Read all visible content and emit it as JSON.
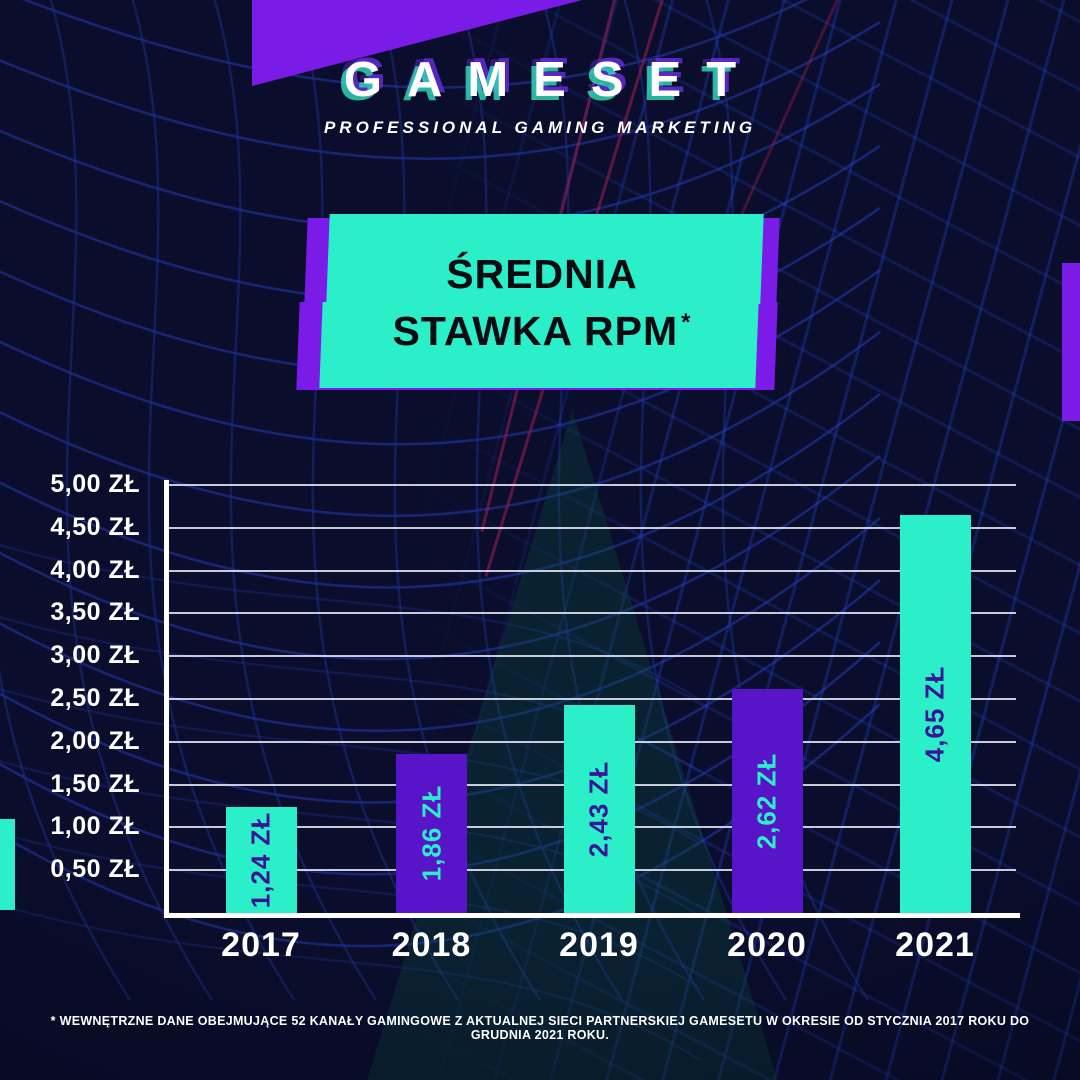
{
  "brand": {
    "logo": "GAMESET",
    "tagline": "PROFESSIONAL GAMING MARKETING"
  },
  "title": {
    "line1": "ŚREDNIA",
    "line2": "STAWKA RPM",
    "asterisk": "*"
  },
  "chart_data": {
    "type": "bar",
    "title": "ŚREDNIA STAWKA RPM*",
    "categories": [
      "2017",
      "2018",
      "2019",
      "2020",
      "2021"
    ],
    "values": [
      1.24,
      1.86,
      2.43,
      2.62,
      4.65
    ],
    "value_labels": [
      "1,24 ZŁ",
      "1,86 ZŁ",
      "2,43 ZŁ",
      "2,62 ZŁ",
      "4,65 ZŁ"
    ],
    "y_ticks": [
      "5,00 ZŁ",
      "4,50 ZŁ",
      "4,00 ZŁ",
      "3,50 ZŁ",
      "3,00 ZŁ",
      "2,50 ZŁ",
      "2,00 ZŁ",
      "1,50 ZŁ",
      "1,00 ZŁ",
      "0,50 ZŁ"
    ],
    "ylim": [
      0,
      5.0
    ],
    "unit": "ZŁ",
    "grid": true,
    "bar_colors": [
      "#2BEFC8",
      "#5714C9",
      "#2BEFC8",
      "#5714C9",
      "#2BEFC8"
    ],
    "value_label_colors": [
      "#3B1497",
      "#2BEFC8",
      "#3B1497",
      "#2BEFC8",
      "#3B1497"
    ]
  },
  "footnote": "* WEWNĘTRZNE DANE OBEJMUJĄCE 52 KANAŁY GAMINGOWE Z AKTUALNEJ SIECI PARTNERSKIEJ GAMESETU W OKRESIE OD STYCZNIA 2017 ROKU DO GRUDNIA 2021 ROKU.",
  "colors": {
    "background": "#0A0E2C",
    "teal": "#2BEFC8",
    "purple": "#5714C9",
    "glitch_purple": "#7B1BE8",
    "mesh_blue": "#1B2C86",
    "axis_white": "#FFFFFF"
  }
}
